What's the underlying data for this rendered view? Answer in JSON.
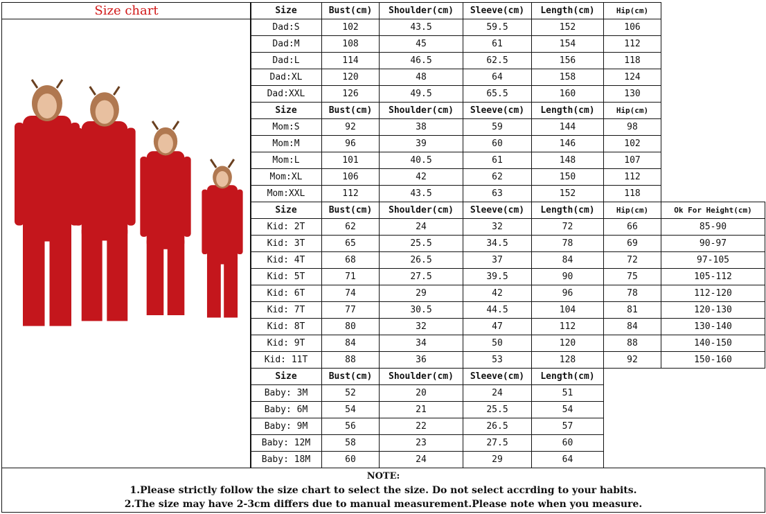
{
  "title": "Size chart",
  "colors": {
    "title": "#d01818",
    "garment": "#c4161c"
  },
  "image": {
    "icon": "family-reindeer-onesie-photo"
  },
  "sections": [
    {
      "headers": [
        "Size",
        "Bust(cm)",
        "Shoulder(cm)",
        "Sleeve(cm)",
        "Length(cm)",
        "Hip(cm)"
      ],
      "rows": [
        [
          "Dad:S",
          "102",
          "43.5",
          "59.5",
          "152",
          "106"
        ],
        [
          "Dad:M",
          "108",
          "45",
          "61",
          "154",
          "112"
        ],
        [
          "Dad:L",
          "114",
          "46.5",
          "62.5",
          "156",
          "118"
        ],
        [
          "Dad:XL",
          "120",
          "48",
          "64",
          "158",
          "124"
        ],
        [
          "Dad:XXL",
          "126",
          "49.5",
          "65.5",
          "160",
          "130"
        ]
      ]
    },
    {
      "headers": [
        "Size",
        "Bust(cm)",
        "Shoulder(cm)",
        "Sleeve(cm)",
        "Length(cm)",
        "Hip(cm)"
      ],
      "rows": [
        [
          "Mom:S",
          "92",
          "38",
          "59",
          "144",
          "98"
        ],
        [
          "Mom:M",
          "96",
          "39",
          "60",
          "146",
          "102"
        ],
        [
          "Mom:L",
          "101",
          "40.5",
          "61",
          "148",
          "107"
        ],
        [
          "Mom:XL",
          "106",
          "42",
          "62",
          "150",
          "112"
        ],
        [
          "Mom:XXL",
          "112",
          "43.5",
          "63",
          "152",
          "118"
        ]
      ]
    },
    {
      "headers": [
        "Size",
        "Bust(cm)",
        "Shoulder(cm)",
        "Sleeve(cm)",
        "Length(cm)",
        "Hip(cm)",
        "Ok For Height(cm)"
      ],
      "rows": [
        [
          "Kid: 2T",
          "62",
          "24",
          "32",
          "72",
          "66",
          "85-90"
        ],
        [
          "Kid: 3T",
          "65",
          "25.5",
          "34.5",
          "78",
          "69",
          "90-97"
        ],
        [
          "Kid: 4T",
          "68",
          "26.5",
          "37",
          "84",
          "72",
          "97-105"
        ],
        [
          "Kid: 5T",
          "71",
          "27.5",
          "39.5",
          "90",
          "75",
          "105-112"
        ],
        [
          "Kid: 6T",
          "74",
          "29",
          "42",
          "96",
          "78",
          "112-120"
        ],
        [
          "Kid: 7T",
          "77",
          "30.5",
          "44.5",
          "104",
          "81",
          "120-130"
        ],
        [
          "Kid: 8T",
          "80",
          "32",
          "47",
          "112",
          "84",
          "130-140"
        ],
        [
          "Kid: 9T",
          "84",
          "34",
          "50",
          "120",
          "88",
          "140-150"
        ],
        [
          "Kid: 11T",
          "88",
          "36",
          "53",
          "128",
          "92",
          "150-160"
        ]
      ]
    },
    {
      "headers": [
        "Size",
        "Bust(cm)",
        "Shoulder(cm)",
        "Sleeve(cm)",
        "Length(cm)"
      ],
      "rows": [
        [
          "Baby: 3M",
          "52",
          "20",
          "24",
          "51"
        ],
        [
          "Baby: 6M",
          "54",
          "21",
          "25.5",
          "54"
        ],
        [
          "Baby: 9M",
          "56",
          "22",
          "26.5",
          "57"
        ],
        [
          "Baby: 12M",
          "58",
          "23",
          "27.5",
          "60"
        ],
        [
          "Baby: 18M",
          "60",
          "24",
          "29",
          "64"
        ]
      ]
    }
  ],
  "note": {
    "title": "NOTE:",
    "lines": [
      "1.Please strictly follow the size chart to select the size. Do not select accrding to your habits.",
      "2.The size may have 2-3cm differs  due to manual measurement.Please note when you measure."
    ]
  }
}
